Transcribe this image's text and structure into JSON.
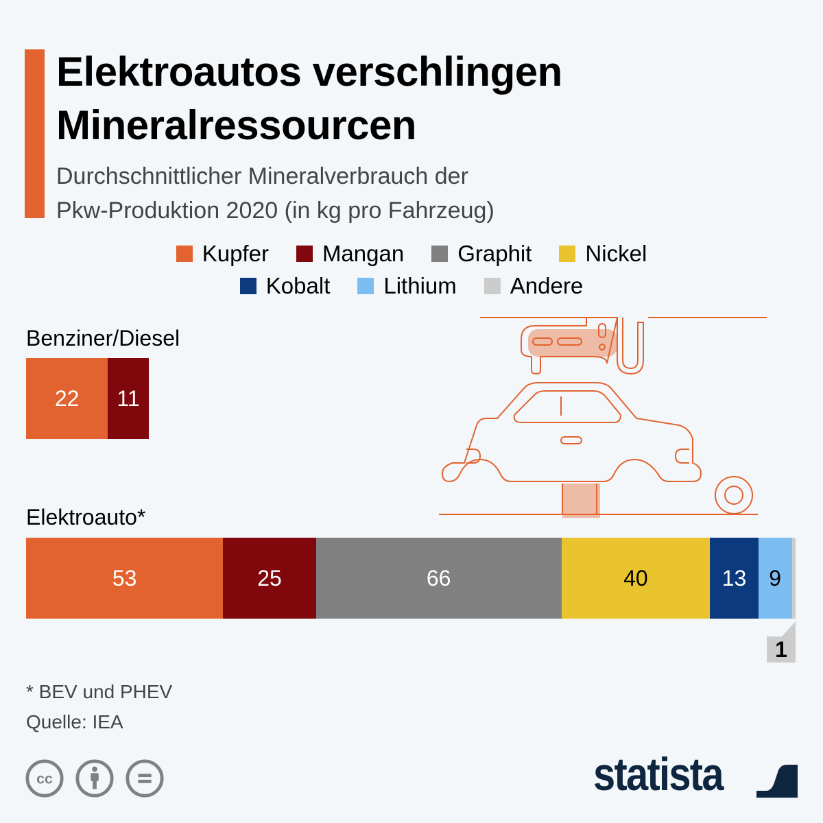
{
  "header": {
    "title_line1": "Elektroautos verschlingen",
    "title_line2": "Mineralressourcen",
    "subtitle_line1": "Durchschnittlicher Mineralverbrauch der",
    "subtitle_line2": "Pkw-Produktion 2020 (in kg pro Fahrzeug)",
    "accent_color": "#e2632f"
  },
  "chart_data": {
    "type": "bar",
    "orientation": "horizontal-stacked",
    "title": "Elektroautos verschlingen Mineralressourcen",
    "subtitle": "Durchschnittlicher Mineralverbrauch der Pkw-Produktion 2020 (in kg pro Fahrzeug)",
    "unit": "kg pro Fahrzeug",
    "legend_position": "top-center",
    "legend": [
      {
        "name": "Kupfer",
        "color": "#e2632f"
      },
      {
        "name": "Mangan",
        "color": "#80070b"
      },
      {
        "name": "Graphit",
        "color": "#808080"
      },
      {
        "name": "Nickel",
        "color": "#e9c42e"
      },
      {
        "name": "Kobalt",
        "color": "#0b3a7e"
      },
      {
        "name": "Lithium",
        "color": "#7dbef2"
      },
      {
        "name": "Andere",
        "color": "#cccccc"
      }
    ],
    "categories": [
      "Benziner/Diesel",
      "Elektroauto*"
    ],
    "series": [
      {
        "name": "Kupfer",
        "values": [
          22,
          53
        ]
      },
      {
        "name": "Mangan",
        "values": [
          11,
          25
        ]
      },
      {
        "name": "Graphit",
        "values": [
          0,
          66
        ]
      },
      {
        "name": "Nickel",
        "values": [
          0,
          40
        ]
      },
      {
        "name": "Kobalt",
        "values": [
          0,
          13
        ]
      },
      {
        "name": "Lithium",
        "values": [
          0,
          9
        ]
      },
      {
        "name": "Andere",
        "values": [
          0,
          1
        ]
      }
    ],
    "label_colors": {
      "Kupfer": "#ffffff",
      "Mangan": "#ffffff",
      "Graphit": "#ffffff",
      "Nickel": "#000000",
      "Kobalt": "#ffffff",
      "Lithium": "#000000",
      "Andere": "#000000"
    },
    "callout_value": "1",
    "xlim": [
      0,
      207
    ],
    "grid": false
  },
  "footer": {
    "note": "* BEV und PHEV",
    "source": "Quelle: IEA",
    "license_icons": [
      "cc-icon",
      "attribution-icon",
      "no-derivatives-icon"
    ],
    "brand": "statista",
    "brand_color": "#0f2640"
  }
}
